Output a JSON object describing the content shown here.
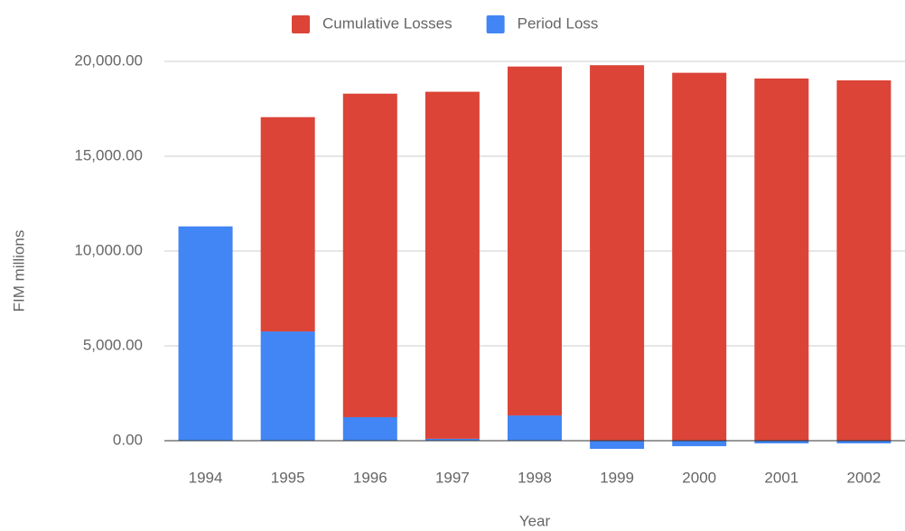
{
  "chart_data": {
    "type": "bar",
    "stacked": true,
    "x_label": "Year",
    "y_label": "FIM millions",
    "categories": [
      "1994",
      "1995",
      "1996",
      "1997",
      "1998",
      "1999",
      "2000",
      "2001",
      "2002"
    ],
    "series": [
      {
        "name": "Cumulative Losses",
        "color": "#db4437",
        "values": [
          0,
          11300,
          17060,
          18300,
          18400,
          19800,
          19400,
          19100,
          19000
        ]
      },
      {
        "name": "Period Loss",
        "color": "#4285f4",
        "values": [
          11300,
          5760,
          1240,
          100,
          1330,
          -430,
          -290,
          -140,
          -140
        ]
      }
    ],
    "ylim": [
      0,
      20000
    ],
    "yticks": [
      {
        "value": 0,
        "label": "0.00"
      },
      {
        "value": 5000,
        "label": "5,000.00"
      },
      {
        "value": 10000,
        "label": "10,000.00"
      },
      {
        "value": 15000,
        "label": "15,000.00"
      },
      {
        "value": 20000,
        "label": "20,000.00"
      }
    ],
    "grid": true,
    "legend": "top"
  }
}
